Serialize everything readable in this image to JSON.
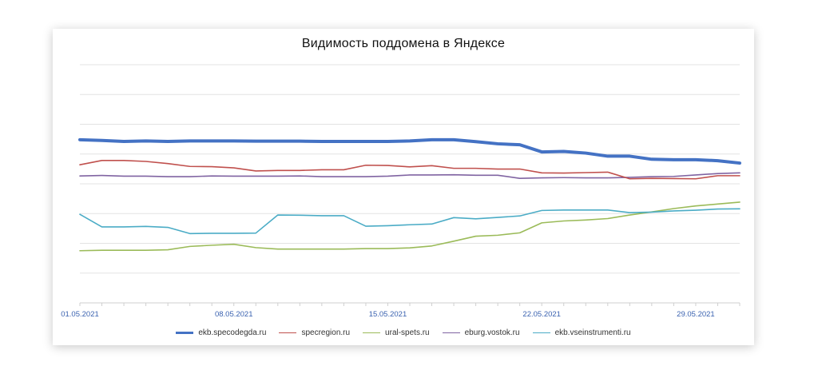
{
  "chart_data": {
    "type": "line",
    "title": "Видимость поддомена в Яндексе",
    "xlabel": "",
    "ylabel": "",
    "grid": true,
    "legend": "bottom",
    "ylim": [
      0,
      100
    ],
    "x": [
      "01.05.2021",
      "02.05.2021",
      "03.05.2021",
      "04.05.2021",
      "05.05.2021",
      "06.05.2021",
      "07.05.2021",
      "08.05.2021",
      "09.05.2021",
      "10.05.2021",
      "11.05.2021",
      "12.05.2021",
      "13.05.2021",
      "14.05.2021",
      "15.05.2021",
      "16.05.2021",
      "17.05.2021",
      "18.05.2021",
      "19.05.2021",
      "20.05.2021",
      "21.05.2021",
      "22.05.2021",
      "23.05.2021",
      "24.05.2021",
      "25.05.2021",
      "26.05.2021",
      "27.05.2021",
      "28.05.2021",
      "29.05.2021",
      "30.05.2021",
      "31.05.2021"
    ],
    "xticks": [
      "01.05.2021",
      "08.05.2021",
      "15.05.2021",
      "22.05.2021",
      "29.05.2021"
    ],
    "series": [
      {
        "name": "ekb.specodegda.ru",
        "color": "#4472C4",
        "width": 4,
        "values": [
          68.5,
          68.2,
          67.8,
          68,
          67.8,
          68,
          68,
          68,
          67.9,
          67.9,
          67.9,
          67.8,
          67.8,
          67.8,
          67.8,
          68,
          68.5,
          68.5,
          67.7,
          66.8,
          66.4,
          63.4,
          63.6,
          62.9,
          61.6,
          61.6,
          60.3,
          60.1,
          60.1,
          59.7,
          58.7
        ]
      },
      {
        "name": "specregion.ru",
        "color": "#C0504D",
        "width": 1.6,
        "values": [
          58,
          59.8,
          59.8,
          59.4,
          58.5,
          57.3,
          57.2,
          56.7,
          55.4,
          55.6,
          55.6,
          55.9,
          55.9,
          57.8,
          57.7,
          57.1,
          57.6,
          56.5,
          56.5,
          56.2,
          56.2,
          54.6,
          54.5,
          54.7,
          54.9,
          52.1,
          52.3,
          52.2,
          52.1,
          53.4,
          53.4
        ]
      },
      {
        "name": "ural-spets.ru",
        "color": "#9BBB59",
        "width": 1.6,
        "values": [
          21.9,
          22.1,
          22.1,
          22.1,
          22.3,
          23.7,
          24.2,
          24.6,
          23.2,
          22.6,
          22.6,
          22.6,
          22.6,
          22.8,
          22.8,
          23.1,
          23.9,
          25.9,
          28,
          28.4,
          29.4,
          33.6,
          34.4,
          34.8,
          35.4,
          36.9,
          38.2,
          39.6,
          40.7,
          41.5,
          42.3
        ]
      },
      {
        "name": "eburg.vostok.ru",
        "color": "#8064A2",
        "width": 1.6,
        "values": [
          53.3,
          53.5,
          53.2,
          53.2,
          53,
          53,
          53.3,
          53.2,
          53.2,
          53.2,
          53.3,
          53,
          53,
          53,
          53.2,
          53.7,
          53.7,
          53.8,
          53.6,
          53.6,
          52.3,
          52.5,
          52.6,
          52.5,
          52.5,
          52.7,
          53,
          53.1,
          53.7,
          54.3,
          54.6
        ]
      },
      {
        "name": "ekb.vseinstrumenti.ru",
        "color": "#4BACC6",
        "width": 1.6,
        "values": [
          37.2,
          31.9,
          31.9,
          32.1,
          31.7,
          29.1,
          29.2,
          29.2,
          29.3,
          36.9,
          36.8,
          36.6,
          36.6,
          32.2,
          32.4,
          32.8,
          33.1,
          35.8,
          35.3,
          35.9,
          36.5,
          38.8,
          39,
          39,
          39,
          37.9,
          38.1,
          38.6,
          38.9,
          39.4,
          39.5
        ]
      }
    ]
  }
}
